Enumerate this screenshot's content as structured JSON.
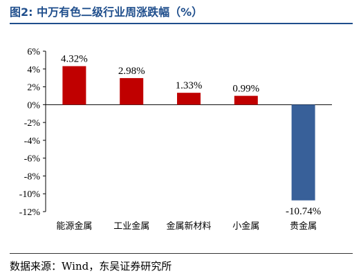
{
  "header": {
    "title": "图2:  中万有色二级行业周涨跌幅（%）"
  },
  "footer": {
    "source": "数据来源：Wind，东吴证券研究所"
  },
  "chart_data": {
    "type": "bar",
    "categories": [
      "能源金属",
      "工业金属",
      "金属新材料",
      "小金属",
      "贵金属"
    ],
    "values": [
      4.32,
      2.98,
      1.33,
      0.99,
      -10.74
    ],
    "data_labels": [
      "4.32%",
      "2.98%",
      "1.33%",
      "0.99%",
      "-10.74%"
    ],
    "bar_colors": [
      "#c00000",
      "#c00000",
      "#c00000",
      "#c00000",
      "#386099"
    ],
    "ylim": [
      -12,
      6
    ],
    "yticks": [
      6,
      4,
      2,
      0,
      -2,
      -4,
      -6,
      -8,
      -10,
      -12
    ],
    "ytick_labels": [
      "6%",
      "4%",
      "2%",
      "0%",
      "-2%",
      "-4%",
      "-6%",
      "-8%",
      "-10%",
      "-12%"
    ],
    "grid": false,
    "legend": "none"
  }
}
